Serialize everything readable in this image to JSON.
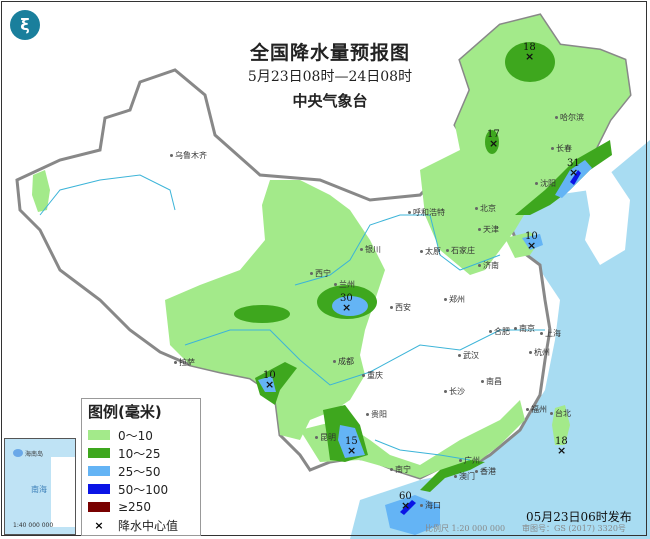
{
  "header": {
    "title": "全国降水量预报图",
    "subtitle": "5月23日08时—24日08时",
    "agency": "中央气象台"
  },
  "colors": {
    "rain_0_10": "#a3ea8a",
    "rain_10_25": "#3ea71e",
    "rain_25_50": "#64b4f5",
    "rain_50_100": "#0a14e6",
    "rain_ge_250": "#780000",
    "sea": "#a8dcf2",
    "border": "#888888"
  },
  "legend": {
    "title": "图例(毫米)",
    "items": [
      {
        "label": "0～10",
        "color": "#a3ea8a"
      },
      {
        "label": "10～25",
        "color": "#3ea71e"
      },
      {
        "label": "25～50",
        "color": "#64b4f5"
      },
      {
        "label": "50～100",
        "color": "#0a14e6"
      },
      {
        "label": "≥250",
        "color": "#780000"
      }
    ],
    "center_marker": "×",
    "center_label": "降水中心值"
  },
  "cities": [
    "乌鲁木齐",
    "哈尔滨",
    "长春",
    "沈阳",
    "呼和浩特",
    "北京",
    "天津",
    "石家庄",
    "太原",
    "银川",
    "西宁",
    "兰州",
    "济南",
    "郑州",
    "西安",
    "合肥",
    "南京",
    "上海",
    "武汉",
    "杭州",
    "成都",
    "重庆",
    "长沙",
    "南昌",
    "拉萨",
    "贵阳",
    "福州",
    "台北",
    "昆明",
    "南宁",
    "广州",
    "香港",
    "澳门",
    "海口"
  ],
  "rain_centers": [
    18,
    17,
    31,
    10,
    30,
    10,
    15,
    18,
    60
  ],
  "inset": {
    "sea_label": "南海",
    "island_label": "海南岛",
    "scale": "1:40 000 000"
  },
  "footer": {
    "issued": "05月23日06时发布",
    "scale": "比例尺 1:20 000 000",
    "map_number": "审图号：GS (2017) 3320号"
  }
}
